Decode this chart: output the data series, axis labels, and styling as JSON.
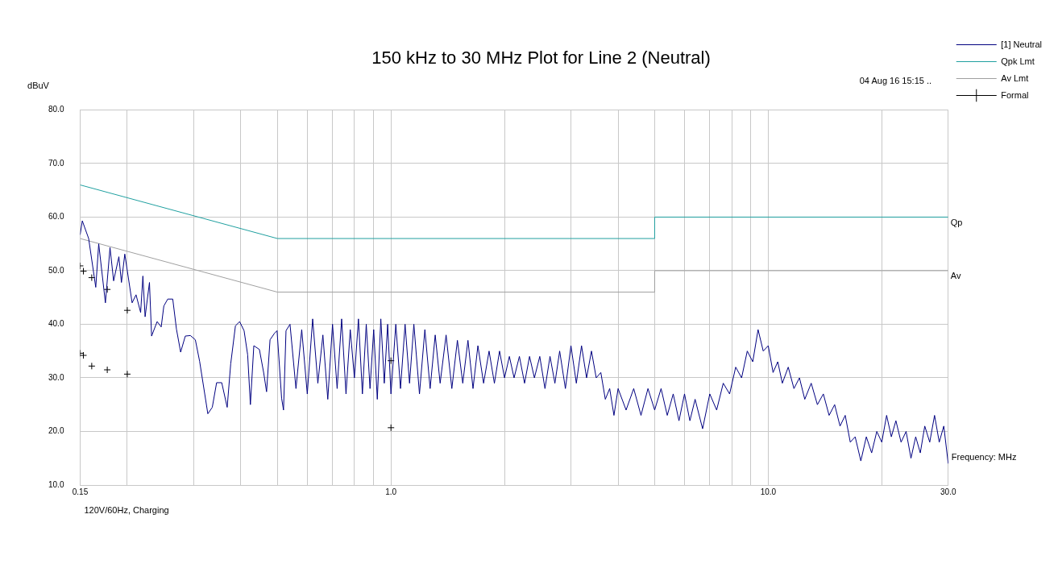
{
  "chart_data": {
    "type": "line",
    "title": "150 kHz to 30 MHz Plot for Line 2 (Neutral)",
    "xlabel": "Frequency: MHz",
    "ylabel": "dBuV",
    "annotations": [
      "04 Aug 16 15:15 ..",
      "120V/60Hz, Charging",
      {
        "text": "Qp",
        "x": 30,
        "y": 60
      },
      {
        "text": "Av",
        "x": 30,
        "y": 50
      }
    ],
    "log": "x",
    "grid": true,
    "legend": "top right",
    "xlim": [
      0.15,
      30
    ],
    "ylim": [
      10,
      80
    ],
    "xticks": [
      {
        "value": 0.15,
        "label": "0.15"
      },
      {
        "value": 0.2,
        "label": null
      },
      {
        "value": 0.3,
        "label": null
      },
      {
        "value": 0.4,
        "label": null
      },
      {
        "value": 0.5,
        "label": null
      },
      {
        "value": 0.6,
        "label": null
      },
      {
        "value": 0.7,
        "label": null
      },
      {
        "value": 0.8,
        "label": null
      },
      {
        "value": 0.9,
        "label": null
      },
      {
        "value": 1,
        "label": "1.0"
      },
      {
        "value": 2,
        "label": null
      },
      {
        "value": 3,
        "label": null
      },
      {
        "value": 4,
        "label": null
      },
      {
        "value": 5,
        "label": null
      },
      {
        "value": 6,
        "label": null
      },
      {
        "value": 7,
        "label": null
      },
      {
        "value": 8,
        "label": null
      },
      {
        "value": 9,
        "label": null
      },
      {
        "value": 10,
        "label": "10.0"
      },
      {
        "value": 20,
        "label": null
      },
      {
        "value": 30,
        "label": "30.0"
      }
    ],
    "yticks": [
      {
        "value": 10,
        "label": "10.0"
      },
      {
        "value": 20,
        "label": "20.0"
      },
      {
        "value": 30,
        "label": "30.0"
      },
      {
        "value": 40,
        "label": "40.0"
      },
      {
        "value": 50,
        "label": "50.0"
      },
      {
        "value": 60,
        "label": "60.0"
      },
      {
        "value": 70,
        "label": "70.0"
      },
      {
        "value": 80,
        "label": "80.0"
      }
    ],
    "series": [
      {
        "name": "[1] Neutral",
        "color": "#000080",
        "x": [
          0.15,
          0.152,
          0.158,
          0.165,
          0.168,
          0.175,
          0.18,
          0.184,
          0.19,
          0.193,
          0.197,
          0.206,
          0.211,
          0.217,
          0.22,
          0.223,
          0.229,
          0.232,
          0.24,
          0.246,
          0.25,
          0.256,
          0.264,
          0.27,
          0.277,
          0.285,
          0.294,
          0.303,
          0.311,
          0.327,
          0.336,
          0.345,
          0.356,
          0.368,
          0.376,
          0.387,
          0.397,
          0.408,
          0.417,
          0.424,
          0.433,
          0.448,
          0.46,
          0.468,
          0.478,
          0.491,
          0.499,
          0.513,
          0.519,
          0.527,
          0.54,
          0.56,
          0.58,
          0.6,
          0.62,
          0.64,
          0.66,
          0.68,
          0.7,
          0.72,
          0.74,
          0.76,
          0.78,
          0.8,
          0.82,
          0.84,
          0.86,
          0.88,
          0.9,
          0.92,
          0.94,
          0.96,
          0.98,
          1.0,
          1.03,
          1.06,
          1.09,
          1.12,
          1.15,
          1.19,
          1.23,
          1.27,
          1.31,
          1.35,
          1.4,
          1.45,
          1.5,
          1.55,
          1.6,
          1.65,
          1.7,
          1.76,
          1.82,
          1.88,
          1.94,
          2.0,
          2.06,
          2.12,
          2.19,
          2.26,
          2.33,
          2.4,
          2.48,
          2.56,
          2.64,
          2.72,
          2.8,
          2.9,
          3.0,
          3.1,
          3.2,
          3.3,
          3.4,
          3.5,
          3.6,
          3.7,
          3.8,
          3.9,
          4.0,
          4.2,
          4.4,
          4.6,
          4.8,
          5.0,
          5.2,
          5.4,
          5.6,
          5.8,
          6.0,
          6.2,
          6.4,
          6.7,
          7.0,
          7.3,
          7.6,
          7.9,
          8.2,
          8.5,
          8.8,
          9.1,
          9.4,
          9.7,
          10.0,
          10.3,
          10.6,
          10.9,
          11.3,
          11.7,
          12.1,
          12.5,
          13.0,
          13.5,
          14.0,
          14.5,
          15.0,
          15.5,
          16.0,
          16.5,
          17.0,
          17.6,
          18.2,
          18.8,
          19.4,
          20.0,
          20.6,
          21.2,
          21.8,
          22.5,
          23.2,
          23.9,
          24.6,
          25.3,
          26.0,
          26.8,
          27.6,
          28.4,
          29.2,
          30.0
        ],
        "values": [
          56.7,
          59.3,
          56,
          46.9,
          55,
          44,
          54.3,
          48.1,
          52.6,
          47.8,
          53.1,
          44,
          45.5,
          42.2,
          49,
          41.4,
          47.8,
          37.8,
          40.5,
          39.5,
          43.4,
          44.7,
          44.7,
          39.1,
          34.8,
          37.8,
          37.9,
          37.1,
          33.1,
          23.3,
          24.5,
          29.1,
          29.1,
          24.5,
          32.6,
          39.7,
          40.5,
          38.8,
          34.3,
          25,
          36,
          35.3,
          30.9,
          27.4,
          37.1,
          38.3,
          38.8,
          26.2,
          24,
          38.8,
          40,
          28,
          39,
          27,
          41,
          29,
          38,
          26,
          40,
          28,
          41,
          27,
          39,
          30,
          41,
          27,
          40,
          28,
          39,
          26,
          41,
          29,
          40,
          27,
          40,
          28,
          40,
          29,
          40,
          27,
          39,
          28,
          38,
          29,
          38,
          28,
          37,
          29,
          37,
          28,
          36,
          29,
          35,
          29,
          35,
          30,
          34,
          30,
          34,
          29,
          34,
          30,
          34,
          28,
          34,
          29,
          35,
          28,
          36,
          29,
          36,
          30,
          35,
          30,
          31,
          26,
          28,
          23,
          28,
          24,
          28,
          23,
          28,
          24,
          28,
          23,
          27,
          22,
          27,
          22,
          26,
          20.5,
          27,
          24,
          29,
          27,
          32,
          30,
          35,
          33,
          39,
          35,
          36,
          31,
          33,
          29,
          32,
          28,
          30,
          26,
          29,
          25,
          27,
          23,
          25,
          21,
          23,
          18,
          19,
          14.5,
          19,
          16,
          20,
          18,
          23,
          19,
          22,
          18,
          20,
          15,
          19,
          16,
          21,
          18,
          23,
          18,
          21,
          14
        ]
      },
      {
        "name": "Qpk Lmt",
        "color": "#20a0a0",
        "x": [
          0.15,
          0.5,
          5,
          5,
          30
        ],
        "values": [
          66,
          56,
          56,
          60,
          60
        ]
      },
      {
        "name": "Av Lmt",
        "color": "#a0a0a0",
        "x": [
          0.15,
          0.5,
          5,
          5,
          30
        ],
        "values": [
          56,
          46,
          46,
          50,
          50
        ]
      },
      {
        "name": "Formal",
        "type": "scatter",
        "color": "#000000",
        "marker": "cross",
        "x": [
          0.15,
          0.153,
          0.161,
          0.177,
          0.2,
          0.15,
          0.153,
          0.161,
          0.177,
          0.2,
          1.0,
          1.0
        ],
        "values": [
          50.9,
          49.9,
          48.7,
          46.5,
          42.6,
          34.6,
          34.2,
          32.2,
          31.5,
          30.7,
          33.2,
          20.7
        ]
      }
    ]
  }
}
